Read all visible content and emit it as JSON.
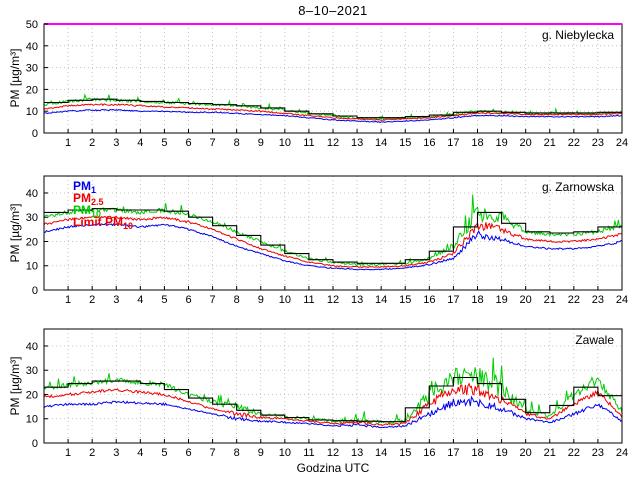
{
  "figure": {
    "title": "8–10–2021",
    "xlabel": "Godzina UTC",
    "ylabel": "PM [µg/m³]",
    "colors": {
      "pm1": "#0000ee",
      "pm25": "#ee0000",
      "pm10": "#00cc00",
      "limit_step": "#000000",
      "limit50": "#ff00ff",
      "grid": "#b5b5b5",
      "axis": "#000000",
      "background": "#ffffff"
    },
    "legend": [
      {
        "prefix": "PM",
        "sub": "1",
        "color": "#0000ee"
      },
      {
        "prefix": "PM",
        "sub": "2.5",
        "color": "#ee0000"
      },
      {
        "prefix": "PM",
        "sub": "10",
        "color": "#00cc00"
      },
      {
        "prefix": "Limit PM",
        "sub": "10",
        "color": "#ee0000"
      }
    ],
    "series_meta": [
      {
        "key": "pm10",
        "label": "PM10",
        "color": "#00cc00",
        "noise_scale": 1
      },
      {
        "key": "pm25",
        "label": "PM2.5",
        "color": "#ee0000",
        "noise_scale": 0.55
      },
      {
        "key": "pm1",
        "label": "PM1",
        "color": "#0000ee",
        "noise_scale": 0.45
      }
    ],
    "limit_step_label": "Limit PM10",
    "limit_step_color": "#000000"
  },
  "chart_data": [
    {
      "type": "line",
      "station": "g. Niebylecka",
      "ylabel": "PM [µg/m³]",
      "ylim": [
        0,
        50
      ],
      "yticks": [
        0,
        10,
        20,
        30,
        40,
        50
      ],
      "xlim": [
        0,
        24
      ],
      "xticks": [
        1,
        2,
        3,
        4,
        5,
        6,
        7,
        8,
        9,
        10,
        11,
        12,
        13,
        14,
        15,
        16,
        17,
        18,
        19,
        20,
        21,
        22,
        23,
        24
      ],
      "hours": [
        0,
        1,
        2,
        3,
        4,
        5,
        6,
        7,
        8,
        9,
        10,
        11,
        12,
        13,
        14,
        15,
        16,
        17,
        18,
        19,
        20,
        21,
        22,
        23,
        24
      ],
      "pm10": [
        13,
        14.5,
        15.5,
        15,
        14.5,
        14,
        13.5,
        13,
        12.5,
        11.5,
        10.5,
        9,
        8,
        7,
        6.5,
        7,
        7.5,
        8.5,
        10,
        9.5,
        9,
        9,
        9,
        9,
        9.5
      ],
      "pm25": [
        11,
        12.5,
        13,
        13,
        12.5,
        12,
        11.5,
        11,
        10.5,
        10,
        9,
        8,
        7,
        6.5,
        6,
        6.5,
        7,
        8,
        9,
        9,
        8.5,
        8.5,
        8.5,
        8.5,
        9
      ],
      "pm1": [
        9,
        10,
        10.5,
        10.5,
        10,
        10,
        9.5,
        9.5,
        9,
        8.5,
        8,
        7,
        6,
        5.5,
        5,
        5.5,
        6,
        7,
        8,
        8,
        7.5,
        7.5,
        7.5,
        7.5,
        8
      ],
      "limit_step_hourly": [
        14,
        15,
        15.5,
        15,
        14.5,
        14,
        13.5,
        13,
        12.5,
        11.5,
        10,
        8.8,
        7.8,
        7,
        7,
        7.5,
        8.2,
        9.5,
        10,
        9.5,
        9.2,
        9.2,
        9.2,
        9.5
      ],
      "limit_line_50": true,
      "show_legend": false,
      "noise_profile": [
        1,
        1,
        1.2,
        1.2,
        1,
        1,
        1,
        1,
        1,
        1,
        0.9,
        0.8,
        0.8,
        0.8,
        0.8,
        0.8,
        0.8,
        1,
        1,
        1,
        0.9,
        0.9,
        0.9,
        0.9,
        0.9
      ]
    },
    {
      "type": "line",
      "station": "g. Zarnowska",
      "ylabel": "PM [µg/m³]",
      "ylim": [
        0,
        47
      ],
      "yticks": [
        0,
        10,
        20,
        30,
        40
      ],
      "xlim": [
        0,
        24
      ],
      "xticks": [
        1,
        2,
        3,
        4,
        5,
        6,
        7,
        8,
        9,
        10,
        11,
        12,
        13,
        14,
        15,
        16,
        17,
        18,
        19,
        20,
        21,
        22,
        23,
        24
      ],
      "hours": [
        0,
        1,
        2,
        3,
        4,
        5,
        6,
        7,
        8,
        9,
        10,
        11,
        12,
        13,
        14,
        15,
        16,
        17,
        18,
        19,
        20,
        21,
        22,
        23,
        24
      ],
      "pm10": [
        30,
        32,
        33,
        33,
        32,
        33,
        31,
        28,
        24,
        20,
        16,
        13,
        11.5,
        10.5,
        10.5,
        11,
        13,
        18,
        32,
        30,
        24,
        23,
        23,
        24,
        27
      ],
      "pm25": [
        27,
        29,
        30,
        30,
        29,
        30,
        28,
        25,
        21,
        17,
        14,
        11.5,
        10,
        9.5,
        9.5,
        10,
        11.5,
        15,
        27,
        25,
        21,
        20,
        20,
        21,
        23
      ],
      "pm1": [
        24,
        26,
        27,
        27,
        26,
        27,
        25,
        22,
        18,
        15,
        12,
        10,
        9,
        8.5,
        8.5,
        9,
        10.5,
        13,
        23,
        21,
        18,
        17,
        17,
        18,
        20
      ],
      "limit_step_hourly": [
        32,
        33,
        33.5,
        33,
        33,
        32.5,
        30,
        26.5,
        22.5,
        18.5,
        15,
        12.5,
        11.5,
        11,
        11,
        12.5,
        16,
        26,
        32,
        27.5,
        24,
        23.5,
        24,
        26
      ],
      "limit_line_50": false,
      "show_legend": true,
      "noise_profile": [
        1.5,
        1.5,
        1.5,
        1.5,
        1.5,
        1.5,
        1.5,
        1.2,
        1.2,
        1,
        1,
        0.9,
        0.8,
        0.8,
        0.8,
        0.9,
        1.2,
        2.5,
        6.5,
        4.5,
        1.5,
        1.2,
        1.2,
        1.5,
        2
      ]
    },
    {
      "type": "line",
      "station": "Zawale",
      "ylabel": "PM [µg/m³]",
      "ylim": [
        0,
        47
      ],
      "yticks": [
        0,
        10,
        20,
        30,
        40
      ],
      "xlim": [
        0,
        24
      ],
      "xticks": [
        1,
        2,
        3,
        4,
        5,
        6,
        7,
        8,
        9,
        10,
        11,
        12,
        13,
        14,
        15,
        16,
        17,
        18,
        19,
        20,
        21,
        22,
        23,
        24
      ],
      "hours": [
        0,
        1,
        2,
        3,
        4,
        5,
        6,
        7,
        8,
        9,
        10,
        11,
        12,
        13,
        14,
        15,
        16,
        17,
        18,
        19,
        20,
        21,
        22,
        23,
        24
      ],
      "pm10": [
        22,
        24,
        25,
        26,
        25,
        24,
        20,
        17,
        15,
        12,
        11,
        10,
        9,
        9.5,
        8.5,
        9,
        20,
        27,
        27,
        22,
        14,
        11,
        20,
        26,
        13
      ],
      "pm25": [
        19,
        20,
        21,
        22,
        21,
        20,
        17,
        14,
        12,
        10.5,
        10,
        9,
        8,
        8.5,
        7.5,
        8,
        16,
        22,
        22,
        18,
        12,
        10,
        16,
        21,
        11
      ],
      "pm1": [
        15,
        16,
        16,
        17,
        16.5,
        16,
        14,
        12,
        10,
        9,
        8.5,
        8,
        7,
        7.5,
        6.5,
        7,
        12,
        17,
        17,
        14,
        10,
        8.5,
        12,
        16,
        9
      ],
      "limit_step_hourly": [
        23,
        24.5,
        25.5,
        25.5,
        24.5,
        22,
        18.5,
        16,
        13.5,
        11.5,
        10.5,
        9.5,
        9.2,
        9,
        8.8,
        14.5,
        23.5,
        27,
        24.5,
        18,
        12.5,
        15.5,
        23,
        19.5
      ],
      "limit_line_50": false,
      "show_legend": false,
      "noise_profile": [
        1.8,
        1.8,
        1.8,
        1.8,
        1.8,
        1.8,
        1.5,
        1.5,
        3,
        1.5,
        1.2,
        1,
        1,
        2.5,
        1,
        1.5,
        5.5,
        8,
        8,
        5.5,
        2,
        1.5,
        3,
        3,
        2
      ]
    }
  ]
}
